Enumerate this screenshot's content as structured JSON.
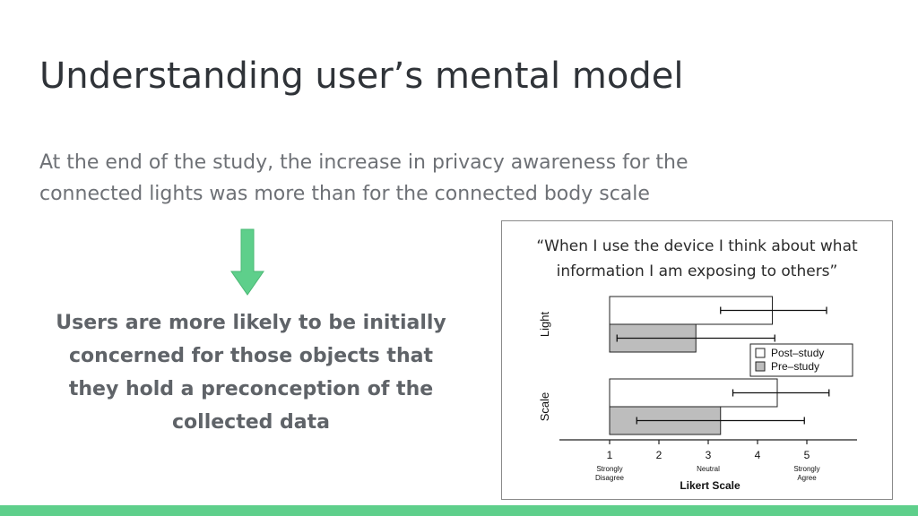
{
  "slide": {
    "title": "Understanding user’s mental model",
    "intro_lines": [
      "At the end of the study, the increase in privacy awareness for the",
      "connected lights was more than for the connected body scale"
    ],
    "conclusion_lines": [
      "Users are more likely to be initially",
      "concerned for those objects that",
      "they hold a preconception of the",
      "collected data"
    ],
    "arrow_icon": "down-arrow-icon",
    "accent_color": "#5ecf8b"
  },
  "chart_data": {
    "type": "bar",
    "orientation": "horizontal",
    "title_lines": [
      "“When I use the device I think about what",
      "information I am exposing to others”"
    ],
    "categories": [
      "Light",
      "Scale"
    ],
    "series": [
      {
        "name": "Post–study",
        "color": "#ffffff",
        "values": [
          4.3,
          4.4
        ],
        "error_low": [
          3.25,
          3.5
        ],
        "error_high": [
          5.4,
          5.45
        ]
      },
      {
        "name": "Pre–study",
        "color": "#bdbdbd",
        "values": [
          2.75,
          3.25
        ],
        "error_low": [
          1.15,
          1.55
        ],
        "error_high": [
          4.35,
          4.95
        ]
      }
    ],
    "xlabel": "Likert Scale",
    "ylabel": "",
    "xlim": [
      0,
      5.5
    ],
    "bar_origin": 1,
    "ticks": [
      {
        "value": 1,
        "label": "1",
        "sublabel": [
          "Strongly",
          "Disagree"
        ]
      },
      {
        "value": 2,
        "label": "2",
        "sublabel": []
      },
      {
        "value": 3,
        "label": "3",
        "sublabel": [
          "Neutral"
        ]
      },
      {
        "value": 4,
        "label": "4",
        "sublabel": []
      },
      {
        "value": 5,
        "label": "5",
        "sublabel": [
          "Strongly",
          "Agree"
        ]
      }
    ],
    "legend_position": "right",
    "grid": false
  }
}
